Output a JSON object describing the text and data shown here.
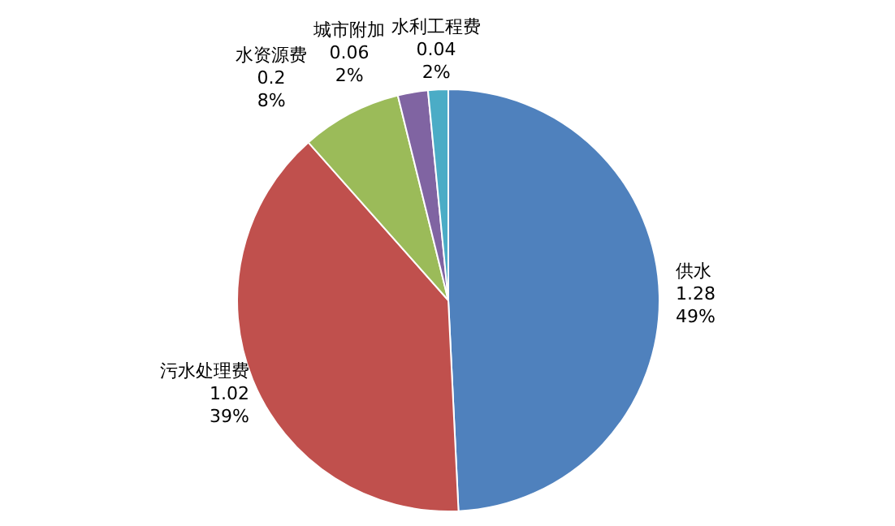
{
  "chart_data": {
    "type": "pie",
    "categories": [
      "供水",
      "污水处理费",
      "水资源费",
      "城市附加",
      "水利工程费"
    ],
    "values": [
      1.28,
      1.02,
      0.2,
      0.06,
      0.04
    ],
    "value_labels": [
      "1.28\n49%",
      "1.02\n39%",
      "0.2\n8%",
      "0.06\n2%",
      "0.04\n2%"
    ],
    "colors": [
      "#4f81bd",
      "#c0504d",
      "#9bbb59",
      "#8064a2",
      "#4bacc6"
    ]
  }
}
